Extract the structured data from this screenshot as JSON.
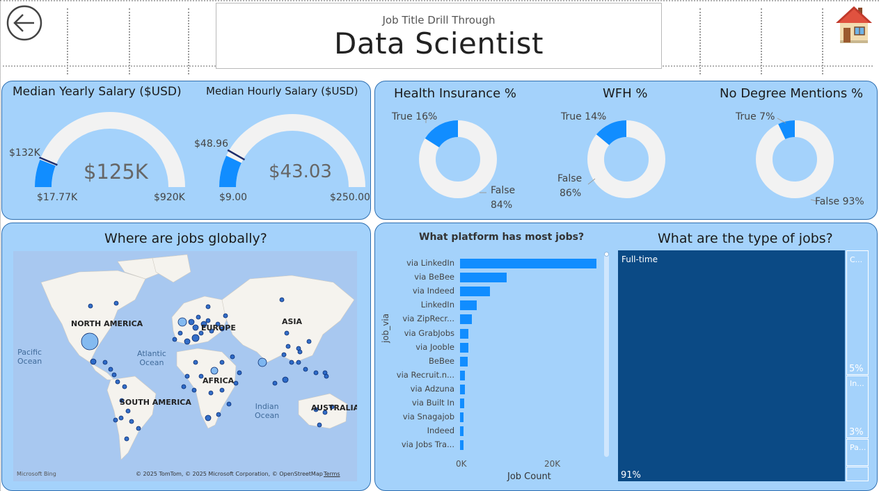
{
  "header": {
    "subtitle": "Job Title Drill Through",
    "title": "Data Scientist",
    "back_icon": "back-arrow-icon",
    "home_icon": "house-icon"
  },
  "gauges": {
    "yearly": {
      "title": "Median Yearly Salary ($USD)",
      "value_label": "$125K",
      "min_label": "$17.77K",
      "max_label": "$920K",
      "target_label": "$132K",
      "min": 17.77,
      "max": 920,
      "value": 125,
      "target": 132
    },
    "hourly": {
      "title": "Median Hourly Salary ($USD)",
      "value_label": "$43.03",
      "min_label": "$9.00",
      "max_label": "$250.00",
      "target_label": "$48.96",
      "min": 9,
      "max": 250,
      "value": 43.03,
      "target": 48.96
    }
  },
  "donuts": [
    {
      "title": "Health Insurance %",
      "true_label": "True 16%",
      "false_label_1": "False",
      "false_label_2": "84%",
      "true_pct": 16
    },
    {
      "title": "WFH %",
      "true_label": "True 14%",
      "false_label_1": "False",
      "false_label_2": "86%",
      "true_pct": 14
    },
    {
      "title": "No Degree Mentions %",
      "true_label": "True 7%",
      "false_label_1": "False 93%",
      "false_label_2": "",
      "true_pct": 7
    }
  ],
  "map": {
    "title": "Where are jobs globally?",
    "continents": [
      "NORTH AMERICA",
      "EUROPE",
      "ASIA",
      "AFRICA",
      "SOUTH AMERICA",
      "AUSTRALIA"
    ],
    "oceans": [
      "Pacific\nOcean",
      "Atlantic\nOcean",
      "Indian\nOcean"
    ],
    "logo": "Microsoft Bing",
    "attribution": "© 2025 TomTom, © 2025 Microsoft Corporation, © OpenStreetMap",
    "terms": "Terms"
  },
  "colors": {
    "panel": "#a4d2fb",
    "accent": "#118dff",
    "track": "#f2f2f2",
    "tree": "#0b4a85"
  },
  "chart_data": [
    {
      "type": "bar",
      "title": "What platform has most jobs?",
      "ylabel": "job_via",
      "xlabel": "Job Count",
      "categories": [
        "via LinkedIn",
        "via BeBee",
        "via Indeed",
        "LinkedIn",
        "via ZipRecr...",
        "via GrabJobs",
        "via Jooble",
        "BeBee",
        "via Recruit.n...",
        "via Adzuna",
        "via Built In",
        "via Snagajob",
        "Indeed",
        "via Jobs Tra..."
      ],
      "values": [
        30000,
        10300,
        6600,
        3600,
        2600,
        1900,
        1800,
        1700,
        1100,
        1000,
        950,
        800,
        750,
        700
      ],
      "x_ticks": [
        "0K",
        "20K"
      ],
      "xlim": [
        0,
        31000
      ]
    },
    {
      "type": "treemap",
      "title": "What are the type of jobs?",
      "tiles": [
        {
          "label": "Full-time",
          "pct_label": "91%",
          "value": 91
        },
        {
          "label": "C...",
          "pct_label": "5%",
          "value": 5
        },
        {
          "label": "In...",
          "pct_label": "3%",
          "value": 3
        },
        {
          "label": "Pa...",
          "pct_label": "",
          "value": 1
        }
      ]
    }
  ]
}
